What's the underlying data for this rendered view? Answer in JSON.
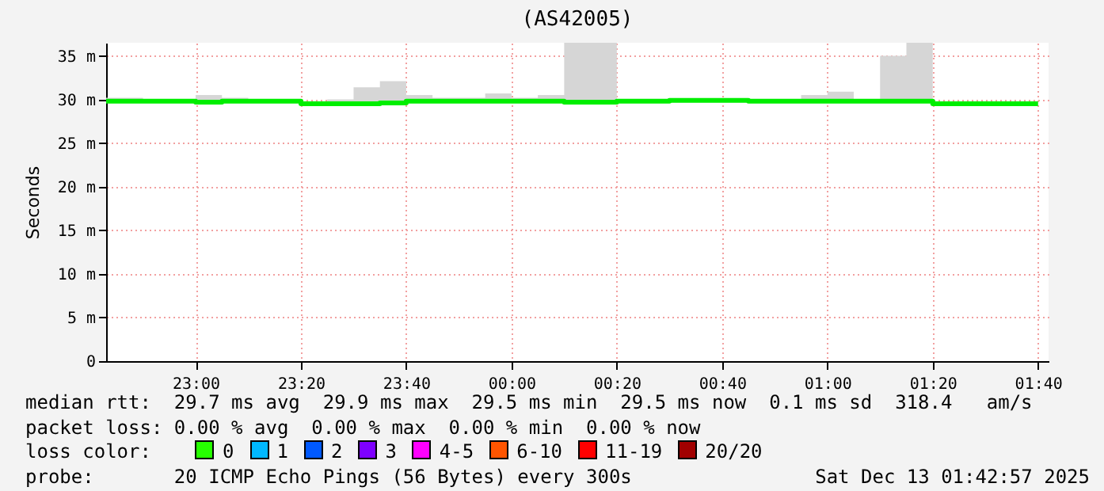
{
  "chart_data": {
    "type": "step",
    "title": "(AS42005)",
    "ylabel": "Seconds",
    "x": [
      "2025-12-12T22:43",
      "2025-12-12T22:50",
      "2025-12-12T23:00",
      "2025-12-12T23:05",
      "2025-12-12T23:10",
      "2025-12-12T23:20",
      "2025-12-12T23:25",
      "2025-12-12T23:30",
      "2025-12-12T23:35",
      "2025-12-12T23:40",
      "2025-12-12T23:45",
      "2025-12-12T23:55",
      "2025-12-13T00:00",
      "2025-12-13T00:05",
      "2025-12-13T00:10",
      "2025-12-13T00:20",
      "2025-12-13T00:30",
      "2025-12-13T00:45",
      "2025-12-13T00:55",
      "2025-12-13T01:00",
      "2025-12-13T01:05",
      "2025-12-13T01:10",
      "2025-12-13T01:15",
      "2025-12-13T01:20",
      "2025-12-13T01:40"
    ],
    "series": [
      {
        "color": "#00ee00",
        "values": [
          29.8,
          29.8,
          29.7,
          29.8,
          29.8,
          29.5,
          29.5,
          29.5,
          29.6,
          29.8,
          29.8,
          29.8,
          29.8,
          29.8,
          29.7,
          29.8,
          29.9,
          29.8,
          29.8,
          29.8,
          29.8,
          29.8,
          29.8,
          29.5,
          29.5
        ],
        "lower": [
          29.6,
          29.6,
          29.5,
          29.6,
          29.6,
          29.3,
          29.3,
          29.3,
          29.4,
          29.6,
          29.6,
          29.6,
          29.6,
          29.6,
          29.5,
          29.6,
          29.7,
          29.6,
          29.6,
          29.6,
          29.6,
          29.6,
          29.6,
          29.3,
          29.3
        ],
        "upper": [
          30.2,
          29.9,
          30.5,
          30.2,
          29.9,
          29.6,
          30.0,
          31.4,
          32.1,
          30.5,
          30.2,
          30.7,
          30.2,
          30.5,
          36.5,
          29.9,
          30.1,
          29.9,
          30.5,
          30.9,
          29.9,
          35.0,
          36.5,
          29.6,
          29.6
        ]
      }
    ],
    "xlim": [
      "2025-12-12T22:43",
      "2025-12-13T01:42"
    ],
    "xticks": [
      {
        "value": "2025-12-12T23:00",
        "label": "23:00"
      },
      {
        "value": "2025-12-12T23:20",
        "label": "23:20"
      },
      {
        "value": "2025-12-12T23:40",
        "label": "23:40"
      },
      {
        "value": "2025-12-13T00:00",
        "label": "00:00"
      },
      {
        "value": "2025-12-13T00:20",
        "label": "00:20"
      },
      {
        "value": "2025-12-13T00:40",
        "label": "00:40"
      },
      {
        "value": "2025-12-13T01:00",
        "label": "01:00"
      },
      {
        "value": "2025-12-13T01:20",
        "label": "01:20"
      },
      {
        "value": "2025-12-13T01:40",
        "label": "01:40"
      }
    ],
    "ylim": [
      0,
      36.5
    ],
    "yticks": [
      0,
      {
        "value": 5,
        "label": "5 m"
      },
      {
        "value": 10,
        "label": "10 m"
      },
      {
        "value": 15,
        "label": "15 m"
      },
      {
        "value": 20,
        "label": "20 m"
      },
      {
        "value": 25,
        "label": "25 m"
      },
      {
        "value": 30,
        "label": "30 m"
      },
      {
        "value": 35,
        "label": "35 m"
      }
    ],
    "grid": true,
    "annotations": [
      "median rtt:  29.7 ms avg  29.9 ms max  29.5 ms min  29.5 ms now  0.1 ms sd  318.4   am/s",
      "packet loss: 0.00 % avg  0.00 % max  0.00 % min  0.00 % now",
      "loss color:",
      "0",
      "1",
      "2",
      "3",
      "4-5",
      "6-10",
      "11-19",
      "20/20",
      "probe:       20 ICMP Echo Pings (56 Bytes) every 300s",
      "Sat Dec 13 01:42:57 2025"
    ]
  }
}
